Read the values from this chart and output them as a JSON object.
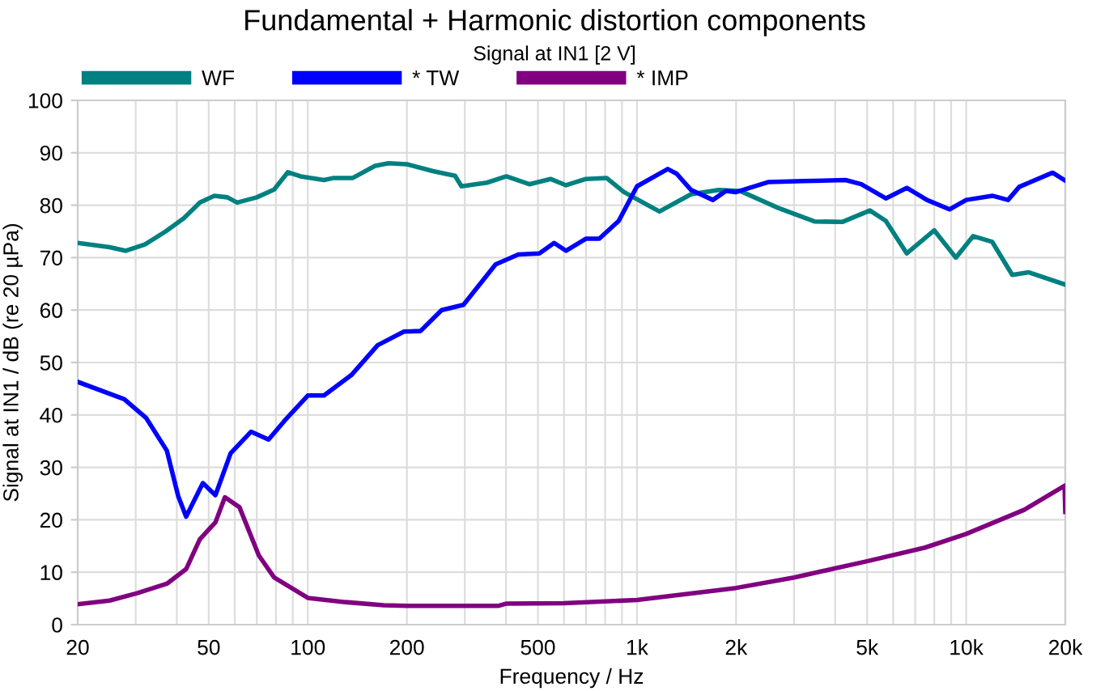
{
  "chart_data": {
    "type": "line",
    "title": "Fundamental + Harmonic distortion components",
    "subtitle": "Signal at IN1 [2 V]",
    "xlabel": "Frequency / Hz",
    "ylabel": "Signal at IN1 / dB (re 20 µPa)",
    "log": "x",
    "grid": true,
    "legend": "top left",
    "marker": "none",
    "line_style": "solid",
    "xlim": [
      20,
      20000
    ],
    "ylim": [
      0,
      100
    ],
    "yticks": [
      0,
      10,
      20,
      30,
      40,
      50,
      60,
      70,
      80,
      90,
      100
    ],
    "xticks": [
      20,
      {
        "value": 30,
        "label": null
      },
      {
        "value": 40,
        "label": null
      },
      50,
      {
        "value": 60,
        "label": null
      },
      {
        "value": 70,
        "label": null
      },
      {
        "value": 80,
        "label": null
      },
      {
        "value": 90,
        "label": null
      },
      100,
      200,
      {
        "value": 300,
        "label": null
      },
      {
        "value": 400,
        "label": null
      },
      500,
      {
        "value": 600,
        "label": null
      },
      {
        "value": 700,
        "label": null
      },
      {
        "value": 800,
        "label": null
      },
      {
        "value": 900,
        "label": null
      },
      {
        "value": 1000,
        "label": "1k"
      },
      {
        "value": 2000,
        "label": "2k"
      },
      {
        "value": 3000,
        "label": null
      },
      {
        "value": 4000,
        "label": null
      },
      {
        "value": 5000,
        "label": "5k"
      },
      {
        "value": 6000,
        "label": null
      },
      {
        "value": 7000,
        "label": null
      },
      {
        "value": 8000,
        "label": null
      },
      {
        "value": 9000,
        "label": null
      },
      {
        "value": 10000,
        "label": "10k"
      },
      {
        "value": 20000,
        "label": "20k"
      }
    ],
    "series": [
      {
        "name": "WF",
        "color": "#008080",
        "x": [
          20,
          25,
          28,
          32,
          37,
          42,
          47,
          52,
          57,
          61,
          70,
          79,
          87,
          95,
          112,
          120,
          137,
          160,
          176,
          200,
          240,
          280,
          293,
          350,
          401,
          471,
          546,
          609,
          699,
          808,
          913,
          1170,
          1460,
          1770,
          2060,
          2680,
          3460,
          4200,
          5100,
          5700,
          6600,
          8000,
          9300,
          10500,
          12000,
          13800,
          15500,
          19900
        ],
        "values": [
          72.8,
          72,
          71.3,
          72.5,
          75,
          77.5,
          80.5,
          81.8,
          81.5,
          80.5,
          81.5,
          83,
          86.3,
          85.5,
          84.8,
          85.2,
          85.2,
          87.5,
          88,
          87.8,
          86.5,
          85.6,
          83.6,
          84.3,
          85.5,
          84,
          85,
          83.8,
          85,
          85.2,
          82.5,
          78.8,
          82.1,
          82.9,
          82.7,
          79.5,
          76.9,
          76.8,
          79,
          77,
          70.8,
          75.2,
          70,
          74.1,
          73,
          66.7,
          67.2,
          64.9
        ]
      },
      {
        "name": "* TW",
        "color": "#0000ff",
        "x": [
          20,
          27.7,
          32.3,
          37.3,
          40.4,
          42.7,
          48,
          52.4,
          58.3,
          67.2,
          76,
          85,
          100,
          112,
          135.6,
          163,
          196,
          220,
          255,
          297,
          372,
          436,
          505,
          560,
          609,
          699,
          768,
          880,
          1000,
          1240,
          1320,
          1460,
          1700,
          1860,
          2000,
          2500,
          3200,
          4300,
          4800,
          5700,
          6600,
          7600,
          8900,
          10000,
          12000,
          13400,
          14500,
          18300,
          20000
        ],
        "values": [
          46.3,
          43,
          39.4,
          33.2,
          24.5,
          20.6,
          27,
          24.7,
          32.7,
          36.8,
          35.3,
          38.9,
          43.7,
          43.7,
          47.6,
          53.3,
          55.9,
          56,
          60,
          61,
          68.7,
          70.6,
          70.8,
          72.8,
          71.3,
          73.6,
          73.6,
          77,
          83.6,
          86.9,
          86,
          82.9,
          81,
          82.7,
          82.5,
          84.4,
          84.6,
          84.8,
          84,
          81.3,
          83.3,
          81,
          79.2,
          81,
          81.8,
          81,
          83.5,
          86.2,
          84.7
        ]
      },
      {
        "name": "* IMP",
        "color": "#800080",
        "x": [
          20,
          25,
          30.3,
          37.3,
          42.7,
          47,
          52.4,
          56,
          62,
          71,
          79,
          100,
          130,
          170,
          200,
          380,
          400,
          600,
          1000,
          2000,
          3000,
          5000,
          7500,
          10000,
          15000,
          19900,
          20000
        ],
        "values": [
          3.9,
          4.6,
          6,
          7.8,
          10.6,
          16.3,
          19.5,
          24.3,
          22.4,
          13.2,
          9,
          5.1,
          4.3,
          3.7,
          3.6,
          3.6,
          4,
          4.1,
          4.7,
          7,
          9,
          12.1,
          14.7,
          17.3,
          21.9,
          26.5,
          21.5
        ]
      }
    ]
  }
}
